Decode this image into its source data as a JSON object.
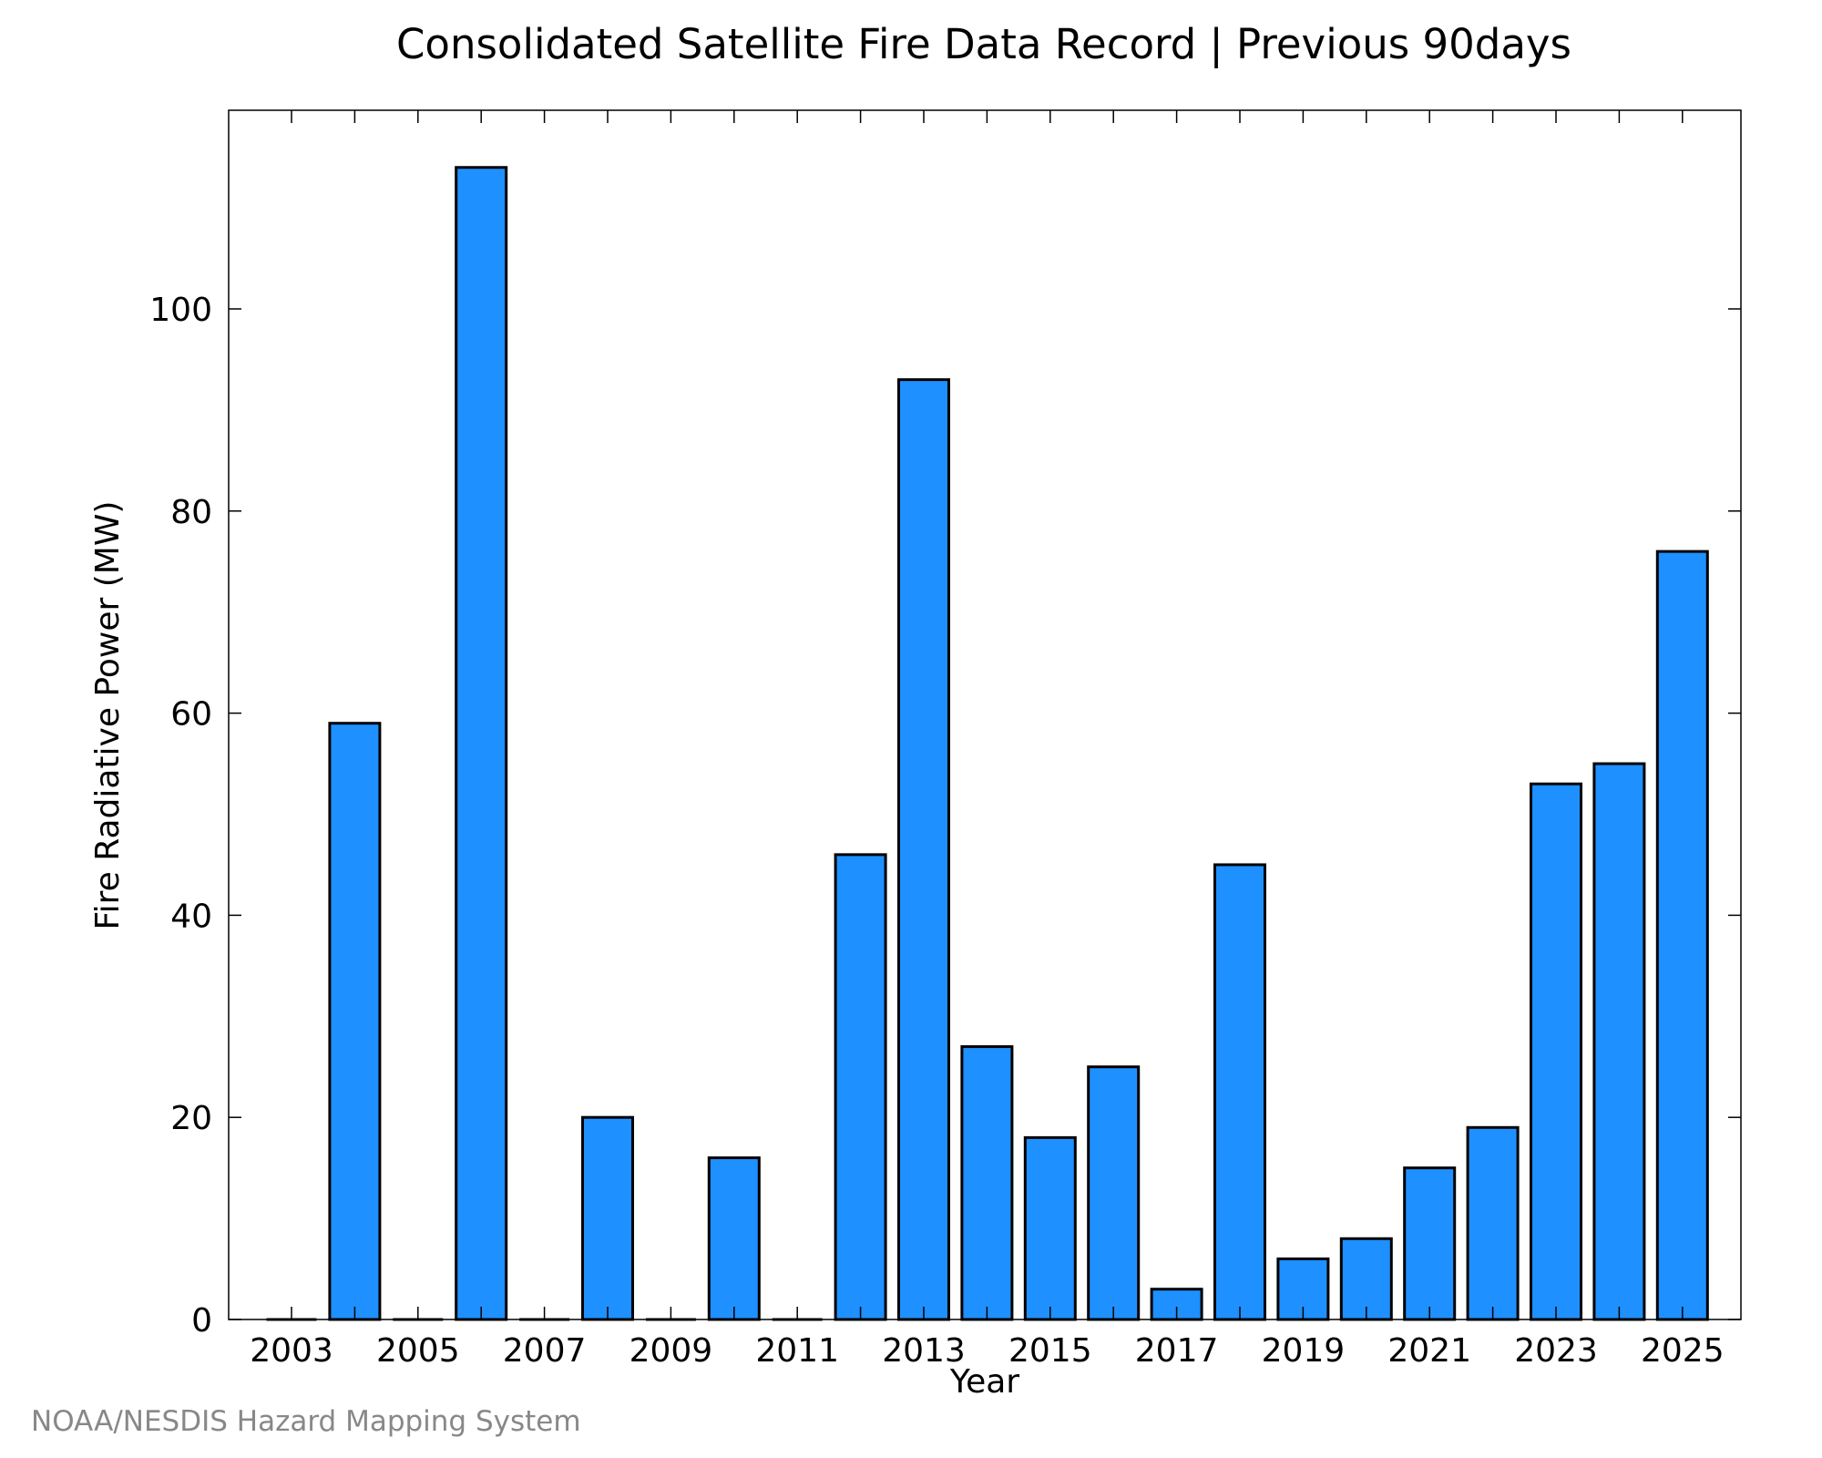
{
  "chart_data": {
    "type": "bar",
    "title": "Consolidated Satellite Fire Data Record | Previous 90days",
    "xlabel": "Year",
    "ylabel": "Fire Radiative Power (MW)",
    "credit": "NOAA/NESDIS Hazard Mapping System",
    "categories": [
      "2003",
      "2004",
      "2005",
      "2006",
      "2007",
      "2008",
      "2009",
      "2010",
      "2011",
      "2012",
      "2013",
      "2014",
      "2015",
      "2016",
      "2017",
      "2018",
      "2019",
      "2020",
      "2021",
      "2022",
      "2023",
      "2024",
      "2025"
    ],
    "values": [
      0,
      59,
      0,
      114,
      0,
      20,
      0,
      16,
      0,
      46,
      93,
      27,
      18,
      25,
      3,
      45,
      6,
      8,
      15,
      19,
      53,
      55,
      76
    ],
    "xticks": [
      "2003",
      "2005",
      "2007",
      "2009",
      "2011",
      "2013",
      "2015",
      "2017",
      "2019",
      "2021",
      "2023",
      "2025"
    ],
    "yticks": [
      "0",
      "20",
      "40",
      "60",
      "80",
      "100"
    ],
    "ylim": [
      0,
      120
    ],
    "bar_color": "#1e90ff",
    "edge_color": "#000000",
    "grid": false
  }
}
